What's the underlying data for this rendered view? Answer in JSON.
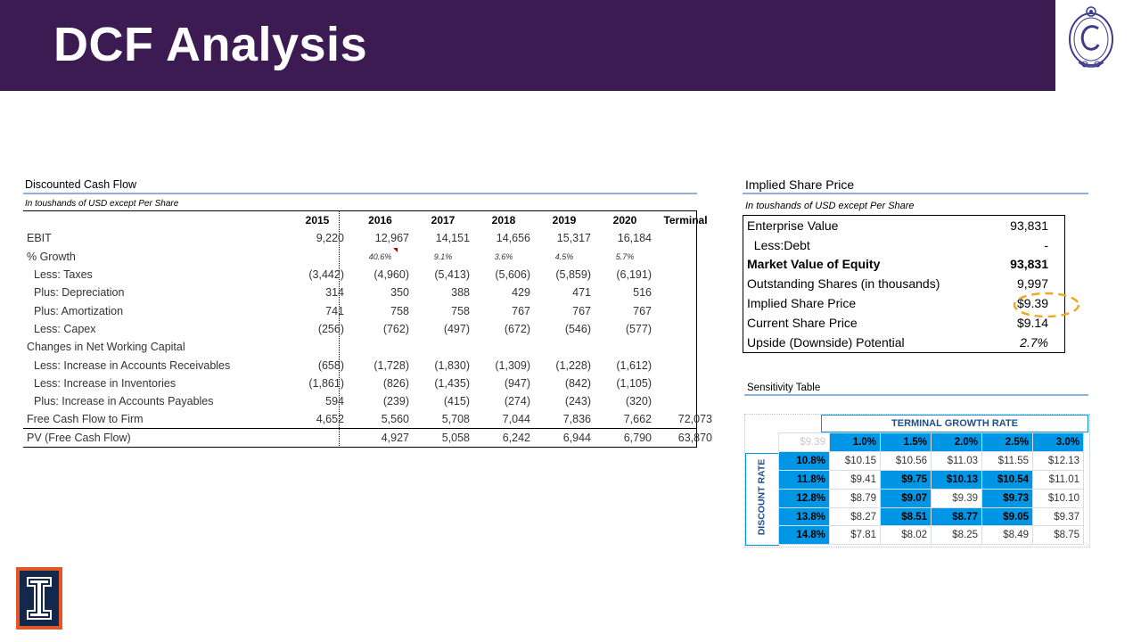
{
  "slide": {
    "title": "DCF Analysis"
  },
  "dcf": {
    "section_title": "Discounted Cash Flow",
    "note": "In toushands of USD except Per Share",
    "columns": [
      "2015",
      "2016",
      "2017",
      "2018",
      "2019",
      "2020",
      "Terminal"
    ],
    "rows": [
      {
        "label": "EBIT",
        "values": [
          "9,220",
          "12,967",
          "14,151",
          "14,656",
          "15,317",
          "16,184",
          ""
        ]
      },
      {
        "label": "% Growth",
        "values": [
          "",
          "40.6%",
          "9.1%",
          "3.6%",
          "4.5%",
          "5.7%",
          ""
        ]
      },
      {
        "label": "Less: Taxes",
        "values": [
          "(3,442)",
          "(4,960)",
          "(5,413)",
          "(5,606)",
          "(5,859)",
          "(6,191)",
          ""
        ]
      },
      {
        "label": "Plus: Depreciation",
        "values": [
          "314",
          "350",
          "388",
          "429",
          "471",
          "516",
          ""
        ]
      },
      {
        "label": "Plus: Amortization",
        "values": [
          "741",
          "758",
          "758",
          "767",
          "767",
          "767",
          ""
        ]
      },
      {
        "label": "Less: Capex",
        "values": [
          "(256)",
          "(762)",
          "(497)",
          "(672)",
          "(546)",
          "(577)",
          ""
        ]
      },
      {
        "label": "Changes in  Net Working Capital",
        "values": [
          "",
          "",
          "",
          "",
          "",
          "",
          ""
        ]
      },
      {
        "label": "Less: Increase in Accounts Receivables",
        "values": [
          "(658)",
          "(1,728)",
          "(1,830)",
          "(1,309)",
          "(1,228)",
          "(1,612)",
          ""
        ]
      },
      {
        "label": "Less: Increase in Inventories",
        "values": [
          "(1,861)",
          "(826)",
          "(1,435)",
          "(947)",
          "(842)",
          "(1,105)",
          ""
        ]
      },
      {
        "label": "Plus: Increase in Accounts Payables",
        "values": [
          "594",
          "(239)",
          "(415)",
          "(274)",
          "(243)",
          "(320)",
          ""
        ]
      },
      {
        "label": "Free Cash Flow to Firm",
        "values": [
          "4,652",
          "5,560",
          "5,708",
          "7,044",
          "7,836",
          "7,662",
          "72,073"
        ]
      },
      {
        "label": "PV (Free Cash Flow)",
        "values": [
          "",
          "4,927",
          "5,058",
          "6,242",
          "6,944",
          "6,790",
          "63,870"
        ]
      }
    ]
  },
  "implied": {
    "section_title": "Implied Share Price",
    "note": "In toushands of USD except Per Share",
    "rows": [
      {
        "label": "Enterprise Value",
        "value": "93,831"
      },
      {
        "label": "  Less:Debt",
        "value": "-"
      },
      {
        "label": "Market Value of Equity",
        "value": "93,831"
      },
      {
        "label": "Outstanding Shares (in thousands)",
        "value": "9,997"
      },
      {
        "label": "Implied Share Price",
        "value": "$9.39"
      },
      {
        "label": "Current Share Price",
        "value": "$9.14"
      },
      {
        "label": "Upside (Downside) Potential",
        "value": "2.7%"
      }
    ]
  },
  "sensitivity": {
    "section_title": "Sensitivity Table",
    "col_header": "TERMINAL GROWTH RATE",
    "row_header": "DISCOUNT RATE",
    "corner": "$9.39",
    "growth_rates": [
      "1.0%",
      "1.5%",
      "2.0%",
      "2.5%",
      "3.0%"
    ],
    "rows": [
      {
        "rate": "10.8%",
        "values": [
          "$10.15",
          "$10.56",
          "$11.03",
          "$11.55",
          "$12.13"
        ]
      },
      {
        "rate": "11.8%",
        "values": [
          "$9.41",
          "$9.75",
          "$10.13",
          "$10.54",
          "$11.01"
        ]
      },
      {
        "rate": "12.8%",
        "values": [
          "$8.79",
          "$9.07",
          "$9.39",
          "$9.73",
          "$10.10"
        ]
      },
      {
        "rate": "13.8%",
        "values": [
          "$8.27",
          "$8.51",
          "$8.77",
          "$9.05",
          "$9.37"
        ]
      },
      {
        "rate": "14.8%",
        "values": [
          "$7.81",
          "$8.02",
          "$8.25",
          "$8.49",
          "$8.75"
        ]
      }
    ]
  },
  "colors": {
    "banner": "#3c1a52",
    "accent": "#0096e6",
    "rule": "#8fb1dc",
    "circle": "#f0a820"
  },
  "icons": {
    "top_right": "college-crest-logo",
    "bottom_left": "university-block-i-logo"
  }
}
